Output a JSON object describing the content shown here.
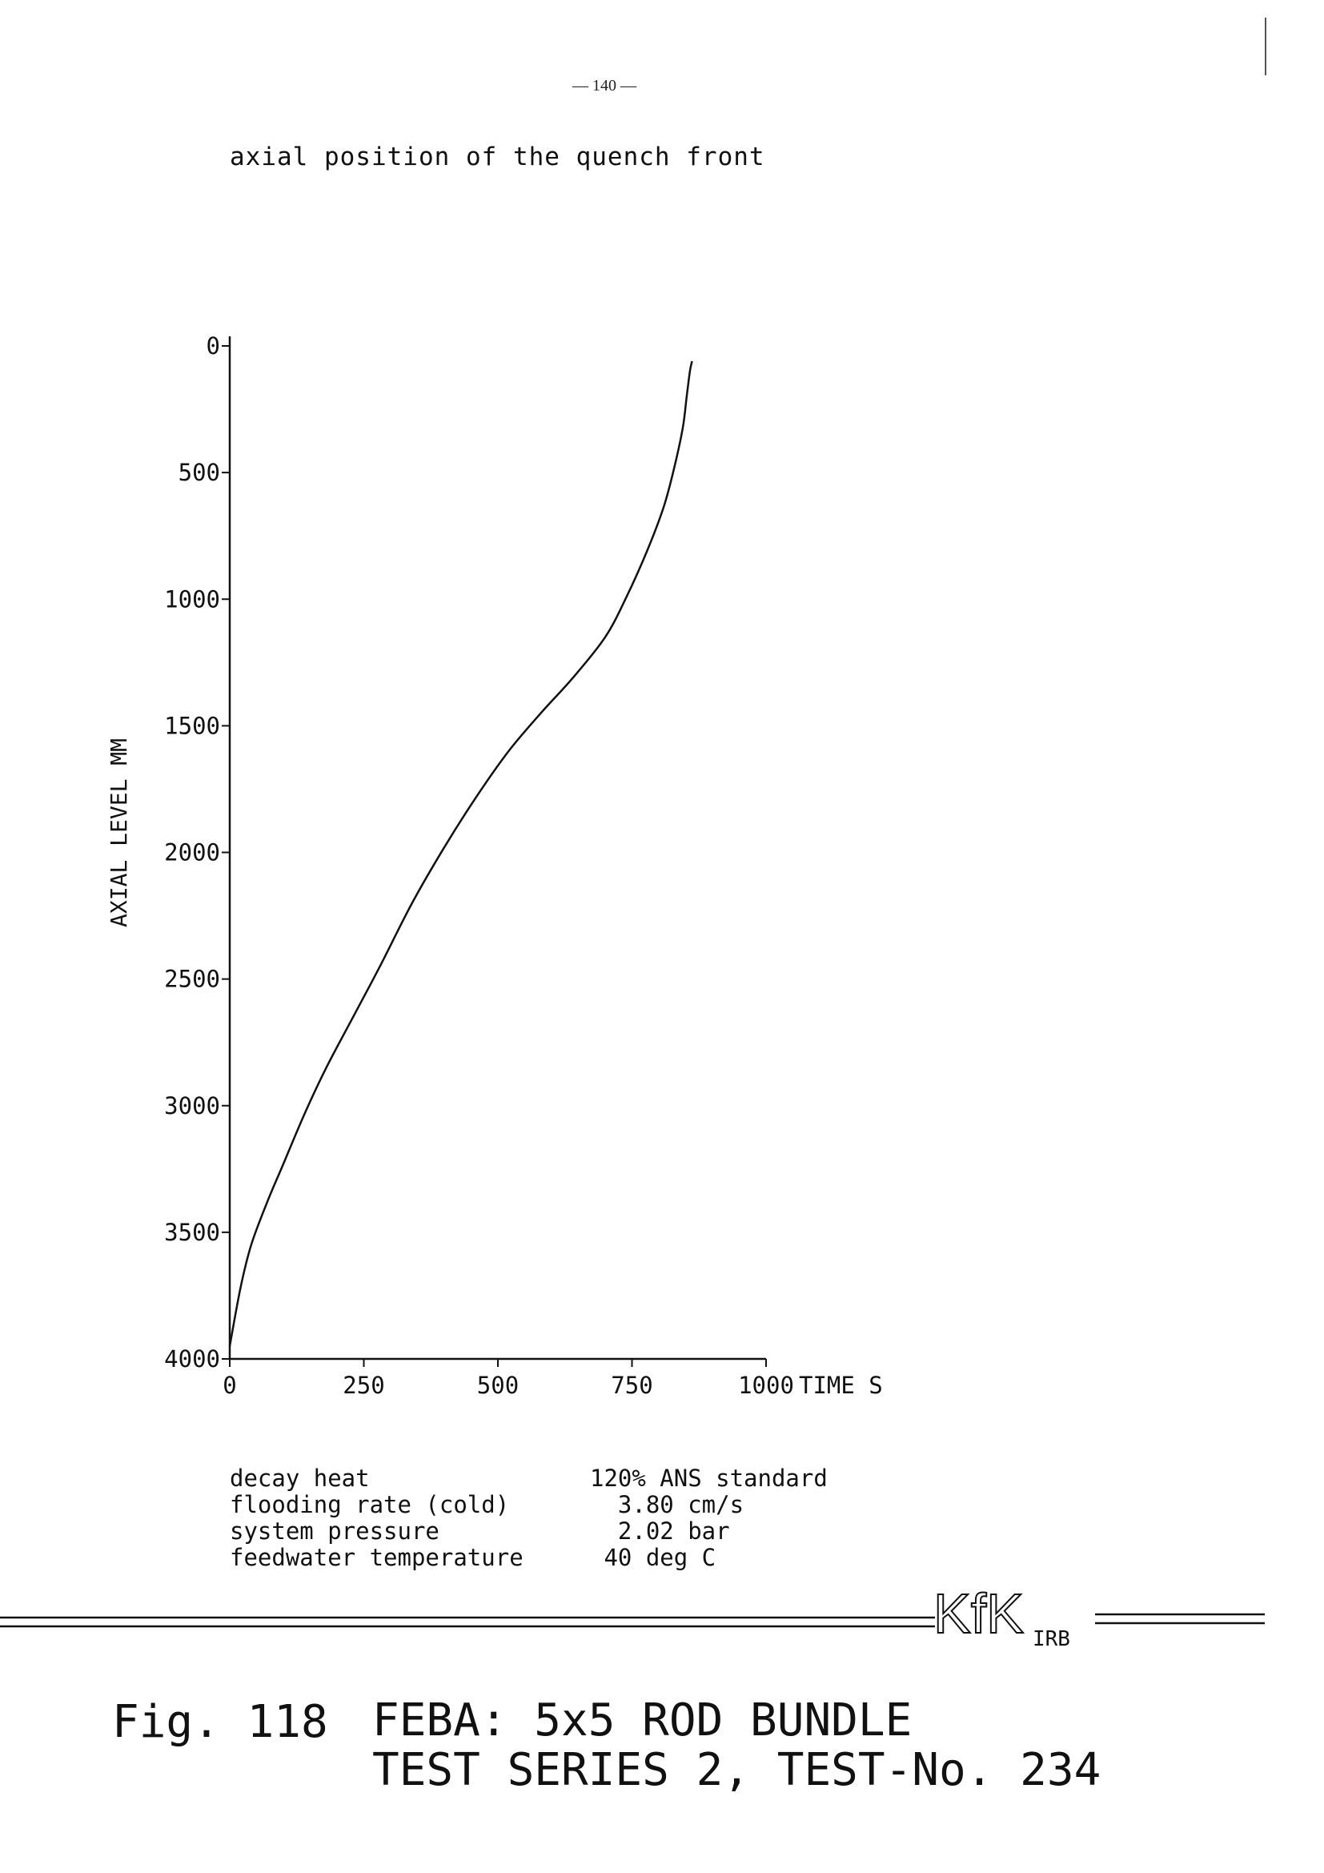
{
  "page": {
    "number": "— 140 —"
  },
  "chart_data": {
    "type": "line",
    "title": "axial position of the quench front",
    "xlabel": "TIME S",
    "ylabel": "AXIAL LEVEL MM",
    "xlim": [
      0,
      1000
    ],
    "ylim": [
      0,
      4000
    ],
    "y_inverted": true,
    "x_ticks": [
      0,
      250,
      500,
      750,
      1000
    ],
    "x_tick_labels": [
      "0",
      "250",
      "500",
      "750",
      "1000"
    ],
    "y_ticks": [
      0,
      500,
      1000,
      1500,
      2000,
      2500,
      3000,
      3500,
      4000
    ],
    "y_tick_labels": [
      "0",
      "500",
      "1000",
      "1500",
      "2000",
      "2500",
      "3000",
      "3500",
      "4000"
    ],
    "grid": false,
    "series": [
      {
        "x": [
          0,
          20,
          40,
          70,
          100,
          140,
          180,
          230,
          280,
          340,
          400,
          460,
          520,
          580,
          640,
          700,
          740,
          780,
          810,
          830,
          845,
          852,
          858,
          862
        ],
        "y": [
          3950,
          3720,
          3550,
          3380,
          3230,
          3030,
          2850,
          2650,
          2450,
          2200,
          1980,
          1780,
          1600,
          1450,
          1310,
          1150,
          990,
          800,
          630,
          470,
          320,
          200,
          100,
          60
        ]
      }
    ]
  },
  "parameters": [
    {
      "label": "decay heat",
      "value": "120% ANS standard"
    },
    {
      "label": "flooding rate (cold)",
      "value": "  3.80 cm/s"
    },
    {
      "label": "system pressure",
      "value": "  2.02 bar"
    },
    {
      "label": "feedwater temperature",
      "value": " 40 deg C"
    }
  ],
  "logo": {
    "text": "KfK",
    "subtext": "IRB"
  },
  "figure": {
    "label": "Fig. 118",
    "title_line1": "FEBA: 5x5 ROD BUNDLE",
    "title_line2": "TEST SERIES 2, TEST-No. 234"
  }
}
